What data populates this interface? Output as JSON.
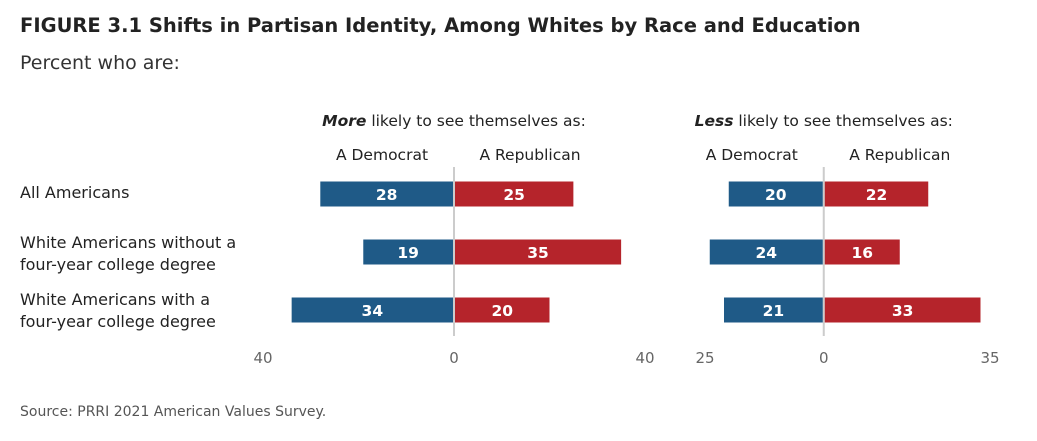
{
  "figure": {
    "title": "FIGURE 3.1  Shifts in Partisan Identity, Among Whites by Race and Education",
    "subtitle": "Percent who are:",
    "source": "Source: PRRI 2021 American Values Survey."
  },
  "rows": [
    {
      "lines": [
        "All Americans"
      ]
    },
    {
      "lines": [
        "White Americans without a",
        "four-year college degree"
      ]
    },
    {
      "lines": [
        "White Americans with a",
        "four-year college degree"
      ]
    }
  ],
  "chart_data": [
    {
      "type": "bar",
      "orientation": "diverging-horizontal",
      "title_emphasis": "More",
      "title_rest": " likely to see themselves as:",
      "left_label": "A Democrat",
      "right_label": "A Republican",
      "categories": [
        "All Americans",
        "White Americans without a four-year college degree",
        "White Americans with a four-year college degree"
      ],
      "series": [
        {
          "name": "A Democrat",
          "side": "left",
          "color": "#1f5a87",
          "values": [
            28,
            19,
            34
          ]
        },
        {
          "name": "A Republican",
          "side": "right",
          "color": "#b5242b",
          "values": [
            25,
            35,
            20
          ]
        }
      ],
      "xlim": [
        -40,
        40
      ],
      "tick_labels": [
        "40",
        "0",
        "40"
      ]
    },
    {
      "type": "bar",
      "orientation": "diverging-horizontal",
      "title_emphasis": "Less",
      "title_rest": " likely to see themselves as:",
      "left_label": "A Democrat",
      "right_label": "A Republican",
      "categories": [
        "All Americans",
        "White Americans without a four-year college degree",
        "White Americans with a four-year college degree"
      ],
      "series": [
        {
          "name": "A Democrat",
          "side": "left",
          "color": "#1f5a87",
          "values": [
            20,
            24,
            21
          ]
        },
        {
          "name": "A Republican",
          "side": "right",
          "color": "#b5242b",
          "values": [
            22,
            16,
            33
          ]
        }
      ],
      "xlim": [
        -25,
        35
      ],
      "tick_labels": [
        "25",
        "0",
        "35"
      ]
    }
  ]
}
